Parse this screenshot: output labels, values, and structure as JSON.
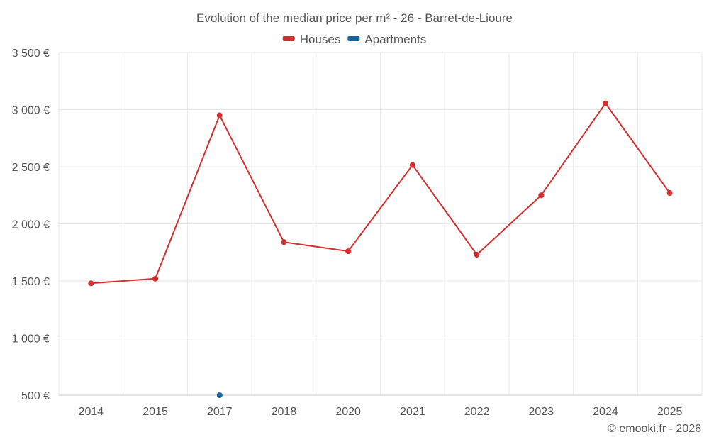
{
  "chart_data": {
    "type": "line",
    "title": "Evolution of the median price per m² - 26 - Barret-de-Lioure",
    "categories": [
      "2014",
      "2015",
      "2017",
      "2018",
      "2020",
      "2021",
      "2022",
      "2023",
      "2024",
      "2025"
    ],
    "series": [
      {
        "name": "Houses",
        "color": "#d32f2f",
        "values": [
          1480,
          1520,
          2950,
          1840,
          1760,
          2515,
          1730,
          2250,
          3055,
          2270
        ]
      },
      {
        "name": "Apartments",
        "color": "#1565a0",
        "values": [
          null,
          null,
          500,
          null,
          null,
          null,
          null,
          null,
          null,
          null
        ]
      }
    ],
    "y_ticks": [
      500,
      1000,
      1500,
      2000,
      2500,
      3000,
      3500
    ],
    "y_tick_labels": [
      "500 €",
      "1 000 €",
      "1 500 €",
      "2 000 €",
      "2 500 €",
      "3 000 €",
      "3 500 €"
    ],
    "ylim": [
      500,
      3500
    ],
    "xlabel": "",
    "ylabel": "",
    "grid": true,
    "legend_position": "top-center"
  },
  "credit": "© emooki.fr - 2026"
}
